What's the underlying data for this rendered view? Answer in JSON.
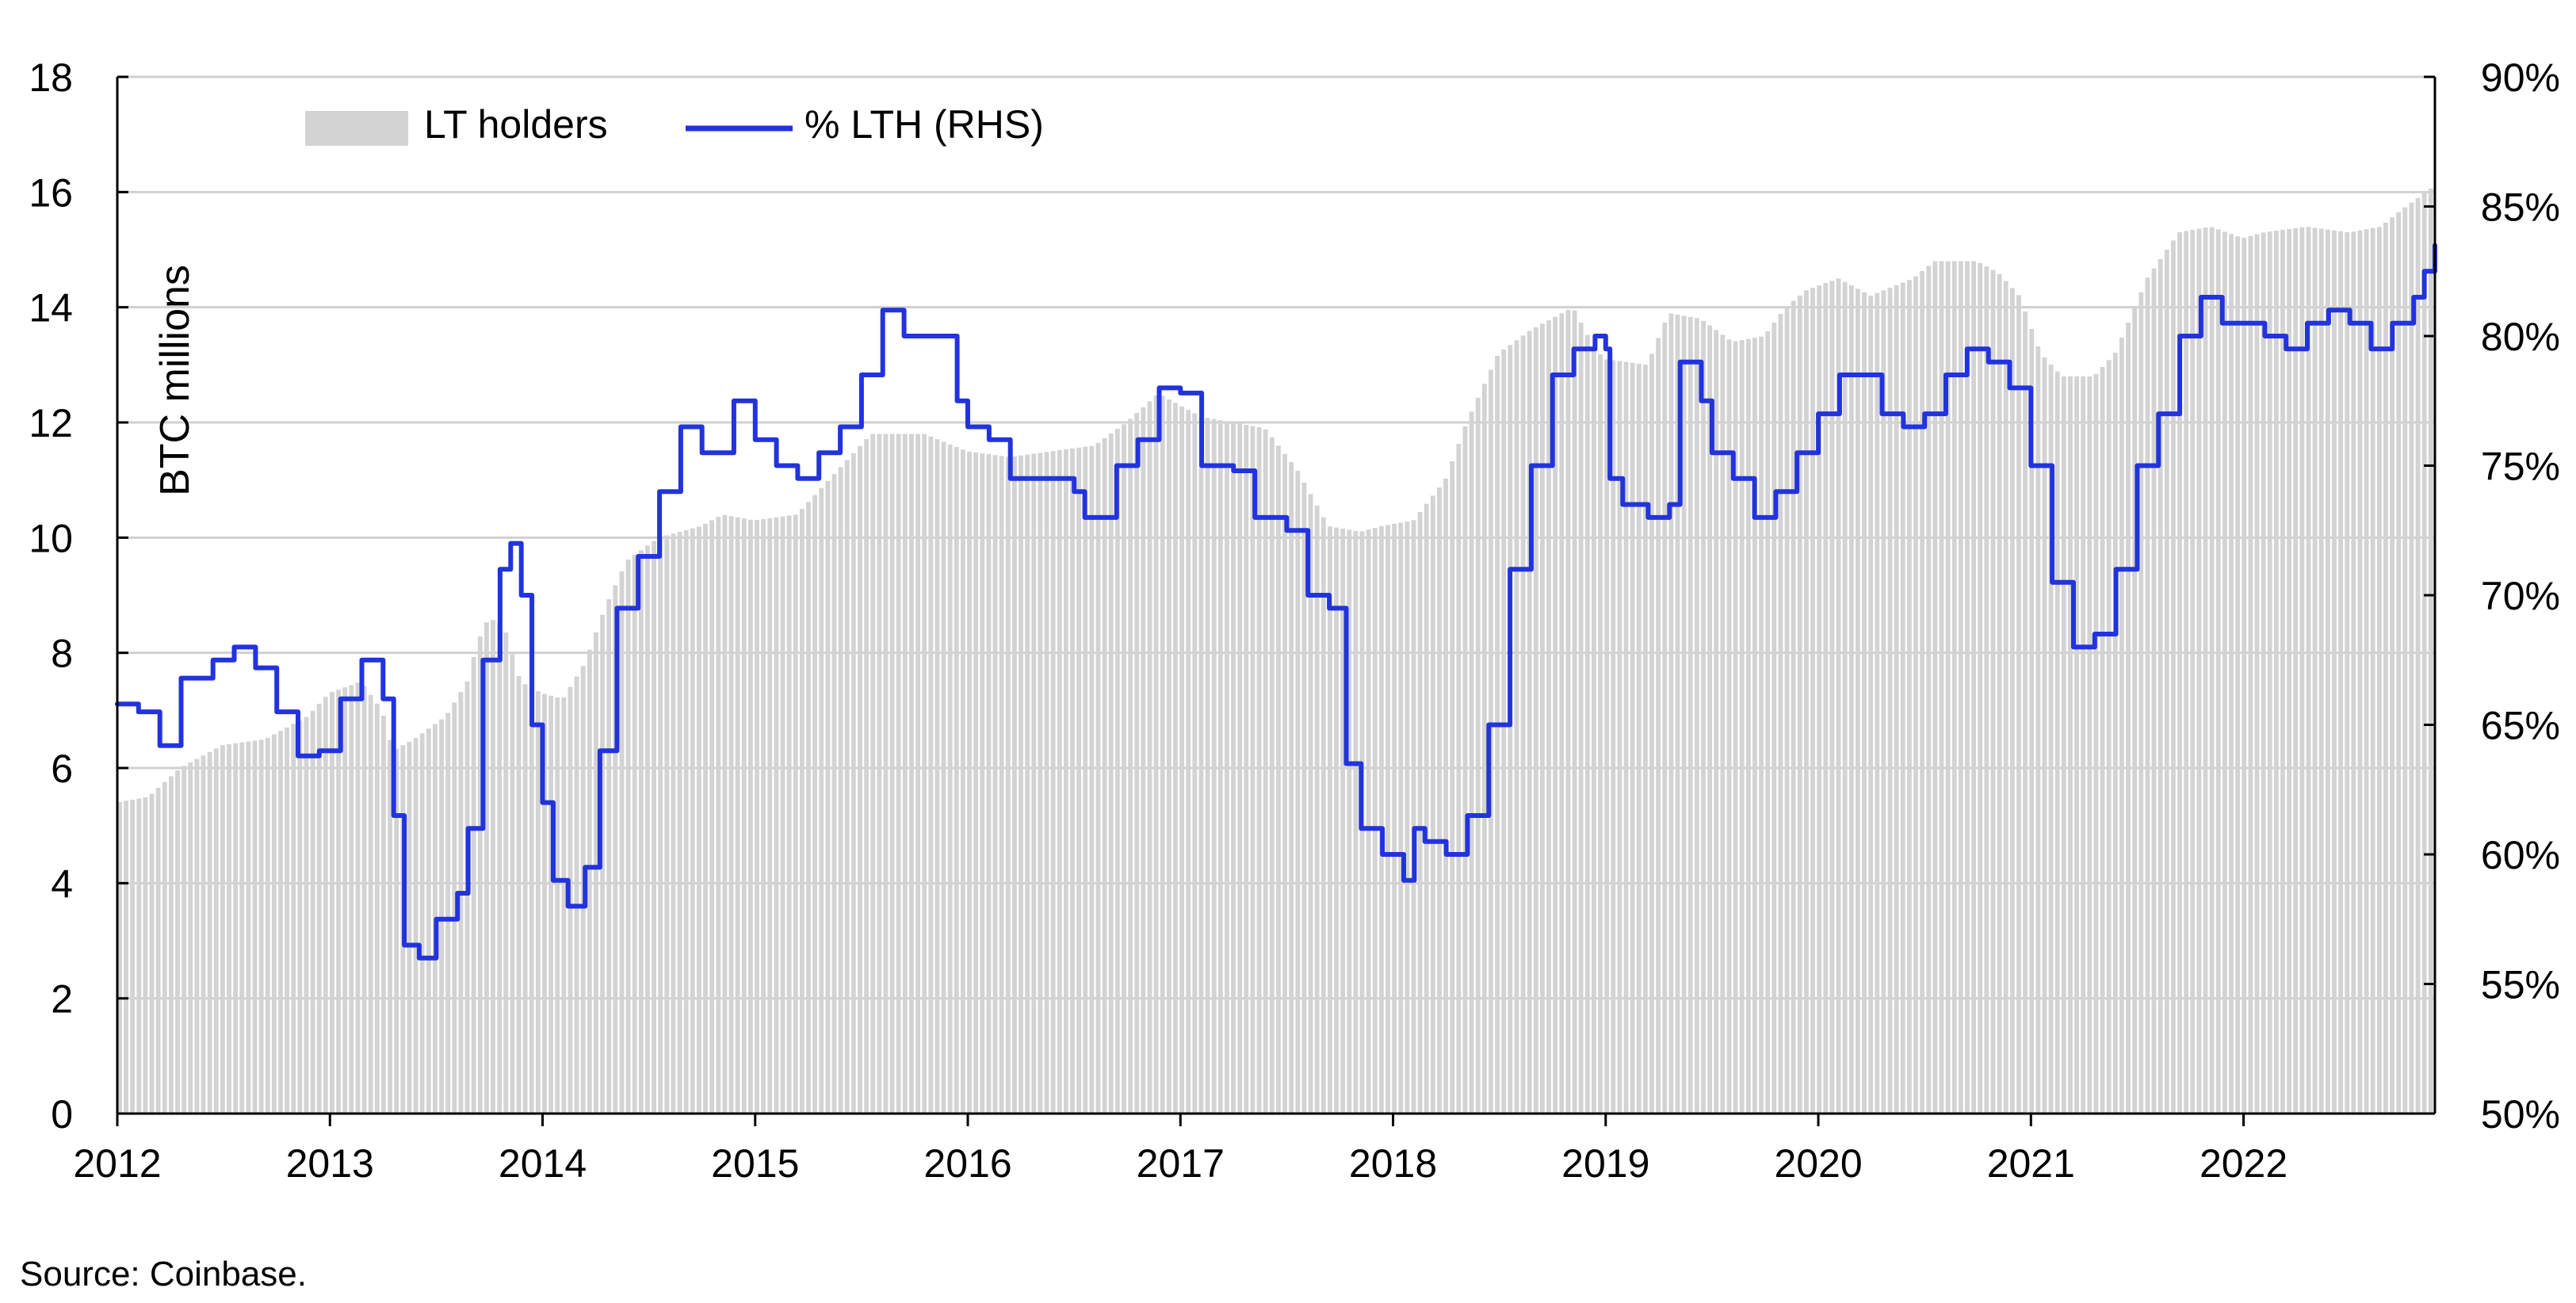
{
  "chart_data": {
    "type": "bar-line-combo",
    "source": "Source: Coinbase.",
    "left_axis": {
      "label": "BTC millions",
      "range": [
        0,
        18
      ],
      "ticks": [
        "0",
        "2",
        "4",
        "6",
        "8",
        "10",
        "12",
        "14",
        "16",
        "18"
      ]
    },
    "right_axis": {
      "range": [
        50,
        90
      ],
      "ticks": [
        "50%",
        "55%",
        "60%",
        "65%",
        "70%",
        "75%",
        "80%",
        "85%",
        "90%"
      ]
    },
    "x_axis": {
      "range": [
        2012.0,
        2022.9
      ],
      "ticks": [
        "2012",
        "2013",
        "2014",
        "2015",
        "2016",
        "2017",
        "2018",
        "2019",
        "2020",
        "2021",
        "2022"
      ]
    },
    "grid": "horizontal",
    "legend": {
      "placement": "top-left",
      "items": [
        "LT holders",
        "% LTH (RHS)"
      ]
    },
    "colors": {
      "bars": "#d3d3d3",
      "line": "#2233dd",
      "grid": "#d0d0d0"
    },
    "series": [
      {
        "name": "LT holders",
        "axis": "left",
        "style": "bar",
        "points": [
          [
            2012.0,
            5.4
          ],
          [
            2012.15,
            5.5
          ],
          [
            2012.3,
            6.0
          ],
          [
            2012.5,
            6.4
          ],
          [
            2012.7,
            6.5
          ],
          [
            2012.9,
            6.9
          ],
          [
            2013.0,
            7.3
          ],
          [
            2013.15,
            7.5
          ],
          [
            2013.25,
            7.0
          ],
          [
            2013.3,
            6.3
          ],
          [
            2013.4,
            6.5
          ],
          [
            2013.55,
            6.9
          ],
          [
            2013.65,
            7.5
          ],
          [
            2013.7,
            8.2
          ],
          [
            2013.75,
            8.6
          ],
          [
            2013.82,
            8.5
          ],
          [
            2013.9,
            7.5
          ],
          [
            2014.0,
            7.3
          ],
          [
            2014.1,
            7.2
          ],
          [
            2014.2,
            7.8
          ],
          [
            2014.3,
            8.8
          ],
          [
            2014.4,
            9.6
          ],
          [
            2014.55,
            10.0
          ],
          [
            2014.75,
            10.2
          ],
          [
            2014.85,
            10.4
          ],
          [
            2015.0,
            10.3
          ],
          [
            2015.2,
            10.4
          ],
          [
            2015.35,
            11.0
          ],
          [
            2015.45,
            11.4
          ],
          [
            2015.55,
            11.8
          ],
          [
            2015.8,
            11.8
          ],
          [
            2016.0,
            11.5
          ],
          [
            2016.2,
            11.4
          ],
          [
            2016.4,
            11.5
          ],
          [
            2016.6,
            11.6
          ],
          [
            2016.75,
            12.0
          ],
          [
            2016.9,
            12.5
          ],
          [
            2017.0,
            12.3
          ],
          [
            2017.1,
            12.1
          ],
          [
            2017.4,
            11.9
          ],
          [
            2017.55,
            11.2
          ],
          [
            2017.7,
            10.2
          ],
          [
            2017.85,
            10.1
          ],
          [
            2017.95,
            10.2
          ],
          [
            2018.1,
            10.3
          ],
          [
            2018.25,
            11.0
          ],
          [
            2018.35,
            12.0
          ],
          [
            2018.5,
            13.2
          ],
          [
            2018.65,
            13.6
          ],
          [
            2018.85,
            14.0
          ],
          [
            2018.95,
            13.3
          ],
          [
            2019.0,
            13.1
          ],
          [
            2019.2,
            13.0
          ],
          [
            2019.3,
            13.9
          ],
          [
            2019.45,
            13.8
          ],
          [
            2019.6,
            13.4
          ],
          [
            2019.75,
            13.5
          ],
          [
            2019.85,
            14.0
          ],
          [
            2019.95,
            14.3
          ],
          [
            2020.1,
            14.5
          ],
          [
            2020.25,
            14.2
          ],
          [
            2020.45,
            14.5
          ],
          [
            2020.55,
            14.8
          ],
          [
            2020.75,
            14.8
          ],
          [
            2020.85,
            14.6
          ],
          [
            2020.95,
            14.2
          ],
          [
            2021.05,
            13.2
          ],
          [
            2021.15,
            12.8
          ],
          [
            2021.3,
            12.8
          ],
          [
            2021.4,
            13.2
          ],
          [
            2021.55,
            14.5
          ],
          [
            2021.7,
            15.3
          ],
          [
            2021.85,
            15.4
          ],
          [
            2022.0,
            15.2
          ],
          [
            2022.1,
            15.3
          ],
          [
            2022.3,
            15.4
          ],
          [
            2022.5,
            15.3
          ],
          [
            2022.65,
            15.4
          ],
          [
            2022.75,
            15.7
          ],
          [
            2022.9,
            16.1
          ]
        ]
      },
      {
        "name": "% LTH (RHS)",
        "axis": "right",
        "style": "line",
        "points": [
          [
            2012.0,
            65.8
          ],
          [
            2012.1,
            65.5
          ],
          [
            2012.2,
            64.2
          ],
          [
            2012.3,
            66.8
          ],
          [
            2012.45,
            67.5
          ],
          [
            2012.55,
            68.0
          ],
          [
            2012.65,
            67.2
          ],
          [
            2012.75,
            65.5
          ],
          [
            2012.85,
            63.8
          ],
          [
            2012.95,
            64.0
          ],
          [
            2013.05,
            66.0
          ],
          [
            2013.15,
            67.5
          ],
          [
            2013.25,
            66.0
          ],
          [
            2013.3,
            61.5
          ],
          [
            2013.35,
            56.5
          ],
          [
            2013.42,
            56.0
          ],
          [
            2013.5,
            57.5
          ],
          [
            2013.6,
            58.5
          ],
          [
            2013.65,
            61.0
          ],
          [
            2013.72,
            67.5
          ],
          [
            2013.8,
            71.0
          ],
          [
            2013.85,
            72.0
          ],
          [
            2013.9,
            70.0
          ],
          [
            2013.95,
            65.0
          ],
          [
            2014.0,
            62.0
          ],
          [
            2014.05,
            59.0
          ],
          [
            2014.12,
            58.0
          ],
          [
            2014.2,
            59.5
          ],
          [
            2014.27,
            64.0
          ],
          [
            2014.35,
            69.5
          ],
          [
            2014.45,
            71.5
          ],
          [
            2014.55,
            74.0
          ],
          [
            2014.65,
            76.5
          ],
          [
            2014.75,
            75.5
          ],
          [
            2014.8,
            75.5
          ],
          [
            2014.9,
            77.5
          ],
          [
            2015.0,
            76.0
          ],
          [
            2015.1,
            75.0
          ],
          [
            2015.2,
            74.5
          ],
          [
            2015.3,
            75.5
          ],
          [
            2015.4,
            76.5
          ],
          [
            2015.5,
            78.5
          ],
          [
            2015.6,
            81.0
          ],
          [
            2015.7,
            80.0
          ],
          [
            2015.85,
            80.0
          ],
          [
            2015.95,
            77.5
          ],
          [
            2016.0,
            76.5
          ],
          [
            2016.1,
            76.0
          ],
          [
            2016.2,
            74.5
          ],
          [
            2016.35,
            74.5
          ],
          [
            2016.5,
            74.0
          ],
          [
            2016.55,
            73.0
          ],
          [
            2016.7,
            75.0
          ],
          [
            2016.8,
            76.0
          ],
          [
            2016.9,
            78.0
          ],
          [
            2017.0,
            77.8
          ],
          [
            2017.1,
            75.0
          ],
          [
            2017.25,
            74.8
          ],
          [
            2017.35,
            73.0
          ],
          [
            2017.5,
            72.5
          ],
          [
            2017.6,
            70.0
          ],
          [
            2017.7,
            69.5
          ],
          [
            2017.78,
            63.5
          ],
          [
            2017.85,
            61.0
          ],
          [
            2017.95,
            60.0
          ],
          [
            2018.05,
            59.0
          ],
          [
            2018.1,
            61.0
          ],
          [
            2018.15,
            60.5
          ],
          [
            2018.25,
            60.0
          ],
          [
            2018.35,
            61.5
          ],
          [
            2018.45,
            65.0
          ],
          [
            2018.55,
            71.0
          ],
          [
            2018.65,
            75.0
          ],
          [
            2018.75,
            78.5
          ],
          [
            2018.85,
            79.5
          ],
          [
            2018.95,
            80.0
          ],
          [
            2019.0,
            79.5
          ],
          [
            2019.02,
            74.5
          ],
          [
            2019.08,
            73.5
          ],
          [
            2019.2,
            73.0
          ],
          [
            2019.3,
            73.5
          ],
          [
            2019.35,
            79.0
          ],
          [
            2019.45,
            77.5
          ],
          [
            2019.5,
            75.5
          ],
          [
            2019.6,
            74.5
          ],
          [
            2019.7,
            73.0
          ],
          [
            2019.8,
            74.0
          ],
          [
            2019.9,
            75.5
          ],
          [
            2020.0,
            77.0
          ],
          [
            2020.1,
            78.5
          ],
          [
            2020.2,
            78.5
          ],
          [
            2020.3,
            77.0
          ],
          [
            2020.4,
            76.5
          ],
          [
            2020.5,
            77.0
          ],
          [
            2020.6,
            78.5
          ],
          [
            2020.7,
            79.5
          ],
          [
            2020.8,
            79.0
          ],
          [
            2020.9,
            78.0
          ],
          [
            2021.0,
            75.0
          ],
          [
            2021.1,
            70.5
          ],
          [
            2021.2,
            68.0
          ],
          [
            2021.3,
            68.5
          ],
          [
            2021.4,
            71.0
          ],
          [
            2021.5,
            75.0
          ],
          [
            2021.6,
            77.0
          ],
          [
            2021.7,
            80.0
          ],
          [
            2021.8,
            81.5
          ],
          [
            2021.9,
            80.5
          ],
          [
            2022.0,
            80.5
          ],
          [
            2022.1,
            80.0
          ],
          [
            2022.2,
            79.5
          ],
          [
            2022.3,
            80.5
          ],
          [
            2022.4,
            81.0
          ],
          [
            2022.5,
            80.5
          ],
          [
            2022.6,
            79.5
          ],
          [
            2022.7,
            80.5
          ],
          [
            2022.8,
            81.5
          ],
          [
            2022.85,
            82.5
          ],
          [
            2022.9,
            83.5
          ]
        ]
      }
    ]
  }
}
